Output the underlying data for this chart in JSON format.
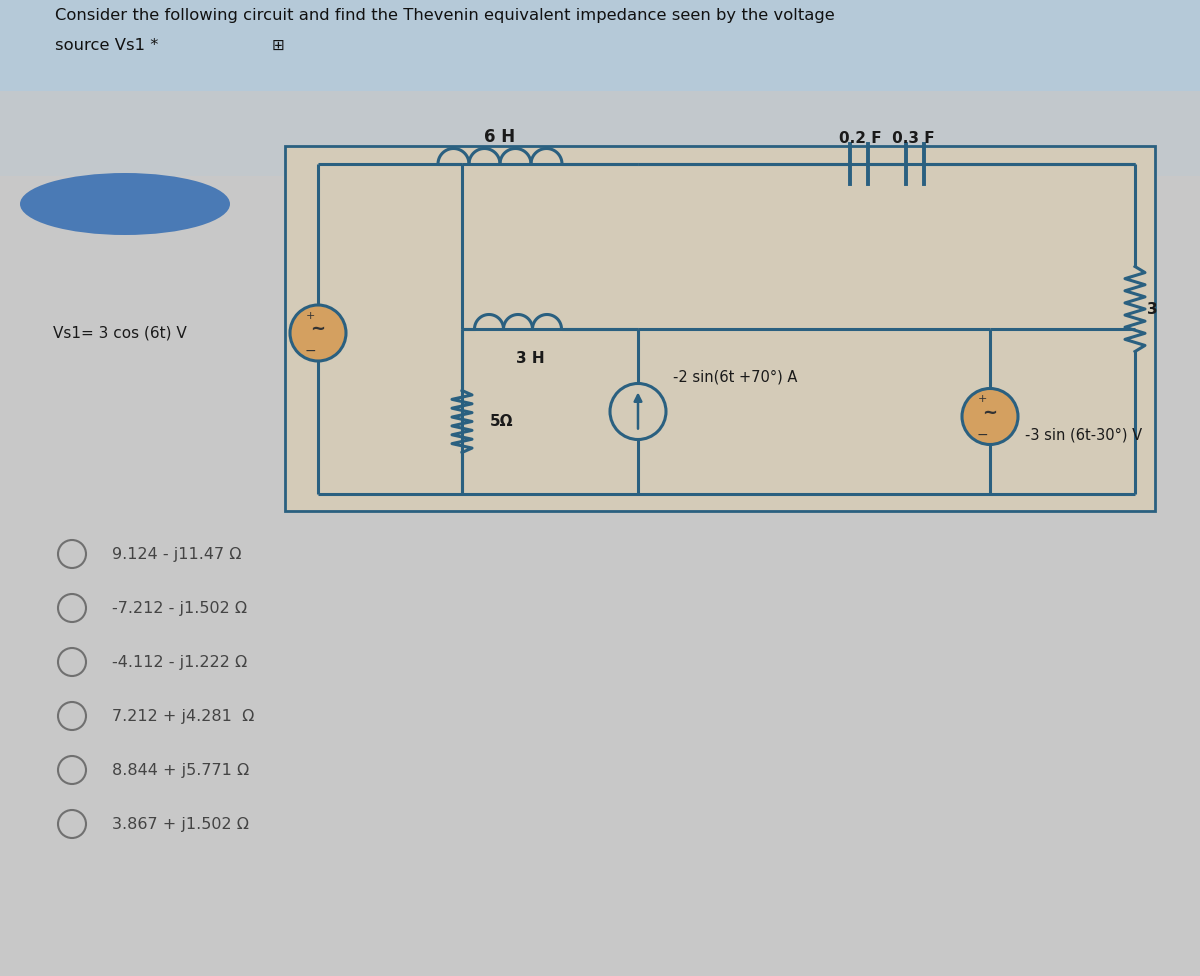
{
  "title_line1": "Consider the following circuit and find the Thevenin equivalent impedance seen by the voltage",
  "title_line2": "source Vs1 *",
  "bg_color": "#c8c8c8",
  "header_bg": "#b8c8d8",
  "circuit_bg": "#d8d0c0",
  "wire_color": "#2a6080",
  "text_color": "#1a1a1a",
  "options": [
    "9.124 - j11.47 Ω",
    "-7.212 - j1.502 Ω",
    "-4.112 - j1.222 Ω",
    "7.212 + j4.281  Ω",
    "8.844 + j5.771 Ω",
    "3.867 + j1.502 Ω"
  ],
  "inductor_6H_label": "6 H",
  "inductor_3H_label": "3 H",
  "cap_label1": "0.2 F  0.3 F",
  "resistor_5_label": "5Ω",
  "resistor_3_label": "3",
  "current_source_label": "-2 sin(6t +70°) A",
  "vs1_label": "Vs1= 3 cos (6t) V",
  "vs2_label": "-3 sin (6t-30°) V"
}
